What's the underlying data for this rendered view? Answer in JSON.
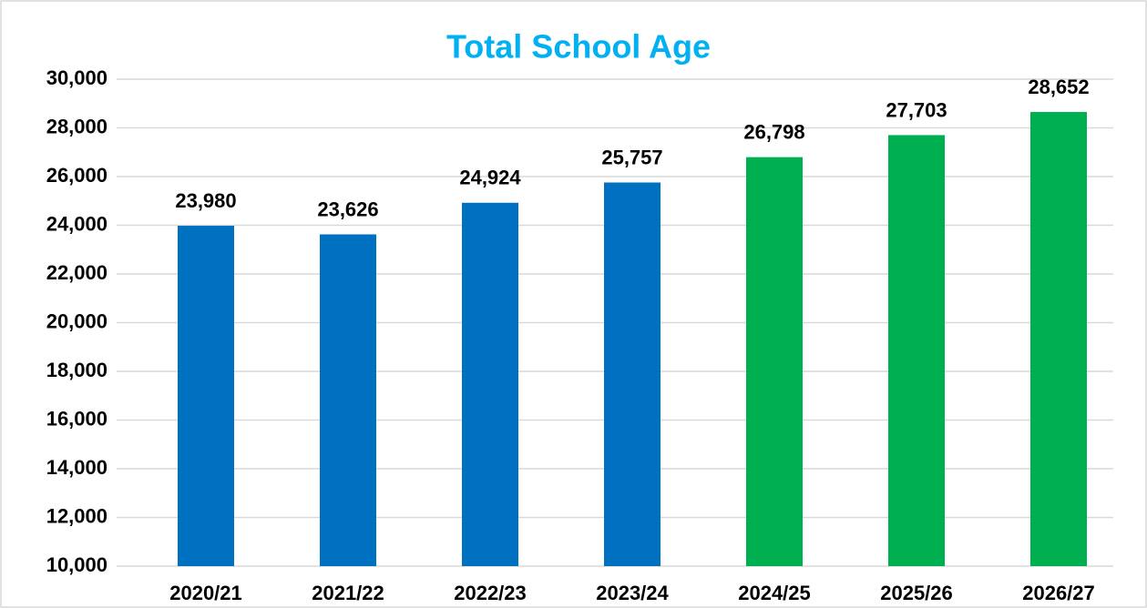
{
  "chart_data": {
    "type": "bar",
    "title": "Total School Age",
    "categories": [
      "2020/21",
      "2021/22",
      "2022/23",
      "2023/24",
      "2024/25",
      "2025/26",
      "2026/27"
    ],
    "values": [
      23980,
      23626,
      24924,
      25757,
      26798,
      27703,
      28652
    ],
    "value_labels": [
      "23,980",
      "23,626",
      "24,924",
      "25,757",
      "26,798",
      "27,703",
      "28,652"
    ],
    "colors": [
      "#0070c0",
      "#0070c0",
      "#0070c0",
      "#0070c0",
      "#00b050",
      "#00b050",
      "#00b050"
    ],
    "ylim": [
      10000,
      30000
    ],
    "yticks": [
      {
        "value": 10000,
        "label": "10,000"
      },
      {
        "value": 12000,
        "label": "12,000"
      },
      {
        "value": 14000,
        "label": "14,000"
      },
      {
        "value": 16000,
        "label": "16,000"
      },
      {
        "value": 18000,
        "label": "18,000"
      },
      {
        "value": 20000,
        "label": "20,000"
      },
      {
        "value": 22000,
        "label": "22,000"
      },
      {
        "value": 24000,
        "label": "24,000"
      },
      {
        "value": 26000,
        "label": "26,000"
      },
      {
        "value": 28000,
        "label": "28,000"
      },
      {
        "value": 30000,
        "label": "30,000"
      }
    ],
    "grid": true
  }
}
